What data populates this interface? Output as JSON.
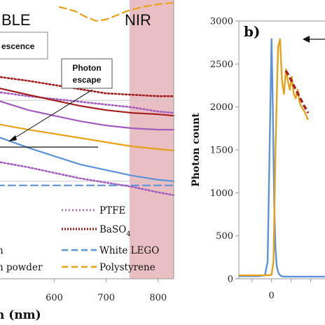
{
  "chart_data": [
    {
      "type": "line",
      "region_labels": [
        "BLE",
        "NIR"
      ],
      "xlabel": "n (nm)",
      "xticks": [
        600,
        700,
        800
      ],
      "xlim": [
        490,
        830
      ],
      "ylim": [
        0,
        1
      ],
      "nir_band": [
        745,
        830
      ],
      "annotations": [
        "escence",
        "Photon escape"
      ],
      "legend_left_fragments": [
        "n",
        "n powder"
      ],
      "series": [
        {
          "name": "PTFE",
          "color": "#a35dbf",
          "dash": "dotted",
          "x": [
            490,
            550,
            600,
            650,
            700,
            750,
            800,
            830
          ],
          "y": [
            0.67,
            0.655,
            0.645,
            0.635,
            0.625,
            0.615,
            0.6,
            0.595
          ]
        },
        {
          "name": "BaSO4",
          "color": "#a41e1e",
          "dash": "dotted",
          "x": [
            490,
            550,
            600,
            650,
            700,
            750,
            800,
            830
          ],
          "y": [
            0.725,
            0.71,
            0.695,
            0.68,
            0.665,
            0.66,
            0.655,
            0.655
          ]
        },
        {
          "name": "White LEGO",
          "color": "#5a93dc",
          "dash": "dashed",
          "x": [
            490,
            550,
            600,
            650,
            700,
            750,
            800,
            830
          ],
          "y": [
            0.335,
            0.335,
            0.335,
            0.335,
            0.335,
            0.335,
            0.335,
            0.335
          ]
        },
        {
          "name": "Polystyrene",
          "color": "#e8a21a",
          "dash": "dashed",
          "x": [
            610,
            640,
            660,
            680,
            700,
            720,
            740,
            770,
            800,
            830
          ],
          "y": [
            0.975,
            0.96,
            0.94,
            0.925,
            0.93,
            0.945,
            0.96,
            0.975,
            0.985,
            0.99
          ]
        },
        {
          "color": "#e8a21a",
          "dash": "solid",
          "x": [
            490,
            550,
            600,
            650,
            700,
            750,
            800,
            830
          ],
          "y": [
            0.555,
            0.535,
            0.52,
            0.505,
            0.49,
            0.475,
            0.465,
            0.46
          ]
        },
        {
          "color": "#5a93dc",
          "dash": "solid",
          "x": [
            490,
            550,
            600,
            650,
            700,
            750,
            800,
            830
          ],
          "y": [
            0.51,
            0.47,
            0.44,
            0.41,
            0.39,
            0.37,
            0.355,
            0.35
          ]
        },
        {
          "color": "#a41e1e",
          "dash": "solid",
          "x": [
            490,
            550,
            600,
            650,
            700,
            750,
            800,
            830
          ],
          "y": [
            0.685,
            0.66,
            0.64,
            0.62,
            0.605,
            0.595,
            0.59,
            0.585
          ]
        },
        {
          "color": "#a35dbf",
          "dash": "solid",
          "x": [
            490,
            550,
            600,
            650,
            700,
            750,
            800,
            830
          ],
          "y": [
            0.64,
            0.605,
            0.585,
            0.565,
            0.55,
            0.54,
            0.535,
            0.535
          ]
        },
        {
          "color": "#a35dbf",
          "dash": "dotted",
          "x": [
            490,
            550,
            600,
            650,
            700,
            750,
            800,
            830
          ],
          "y": [
            0.42,
            0.4,
            0.38,
            0.36,
            0.345,
            0.33,
            0.31,
            0.3
          ]
        }
      ]
    },
    {
      "type": "line",
      "panel_label": "b)",
      "ylabel": "Photon count",
      "yticks": [
        0,
        500,
        1000,
        1500,
        2000,
        2500,
        3000
      ],
      "ylim": [
        0,
        3000
      ],
      "xticks": [
        0
      ],
      "xlim": [
        -5,
        10
      ],
      "series": [
        {
          "color": "#5a93dc",
          "x": [
            -5,
            -2,
            -1,
            -0.6,
            -0.3,
            0,
            0.2,
            0.4,
            0.6,
            0.8,
            1,
            1.2,
            1.5,
            2,
            10
          ],
          "y": [
            30,
            30,
            40,
            200,
            1500,
            2790,
            2000,
            900,
            350,
            150,
            80,
            50,
            30,
            25,
            25
          ]
        },
        {
          "color": "#e8a21a",
          "x": [
            -5,
            -1,
            0,
            0.3,
            0.6,
            1,
            1.3,
            1.6,
            1.9,
            2.2,
            2.5,
            2.8,
            3.1,
            3.4,
            3.7,
            4,
            4.3,
            4.6,
            5,
            5.3,
            5.6
          ],
          "y": [
            40,
            40,
            45,
            200,
            1500,
            2700,
            2790,
            2300,
            2150,
            2440,
            2300,
            2200,
            2350,
            2150,
            2100,
            2200,
            2050,
            2000,
            1950,
            1900,
            1850
          ]
        },
        {
          "color": "#a41e1e",
          "dash": "dashed",
          "x": [
            2.2,
            2.6,
            3,
            3.4,
            3.8,
            4.2,
            4.6,
            5,
            5.4,
            5.6
          ],
          "y": [
            2420,
            2370,
            2310,
            2250,
            2190,
            2130,
            2070,
            2010,
            1960,
            1930
          ]
        }
      ]
    }
  ]
}
